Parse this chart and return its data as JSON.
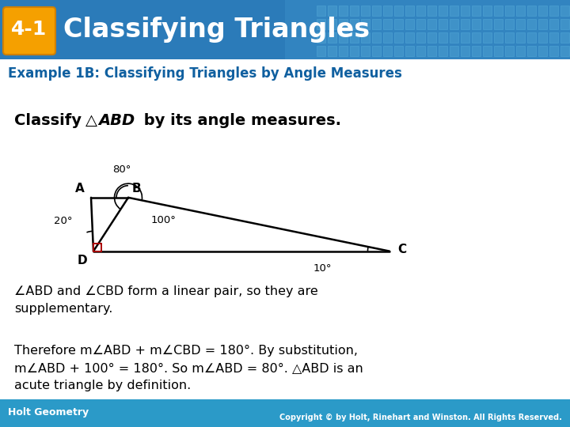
{
  "header_bg_color_left": "#2B7BB9",
  "header_bg_color_right": "#4A9CC8",
  "header_text": "Classifying Triangles",
  "header_badge_color": "#F5A000",
  "header_badge_text": "4-1",
  "subheader_text": "Example 1B: Classifying Triangles by Angle Measures",
  "subheader_color": "#1060A0",
  "footer_bg_color": "#2B9AC8",
  "footer_left": "Holt Geometry",
  "footer_right": "Copyright © by Holt, Rinehart and Winston. All Rights Reserved.",
  "body_bg_color": "#FFFFFF",
  "grid_color": "#5BAAD5",
  "classify_line": "Classify △ABD by its angle measures.",
  "body_line1": "∠ABD and ∠CBD form a linear pair, so they are\nsupplementary.",
  "body_line2": "Therefore m∠ABD + m∠CBD = 180°. By substitution,\nm∠ABD + 100° = 180°. So m∠ABD = 80°. △ABD is an\nacute triangle by definition."
}
